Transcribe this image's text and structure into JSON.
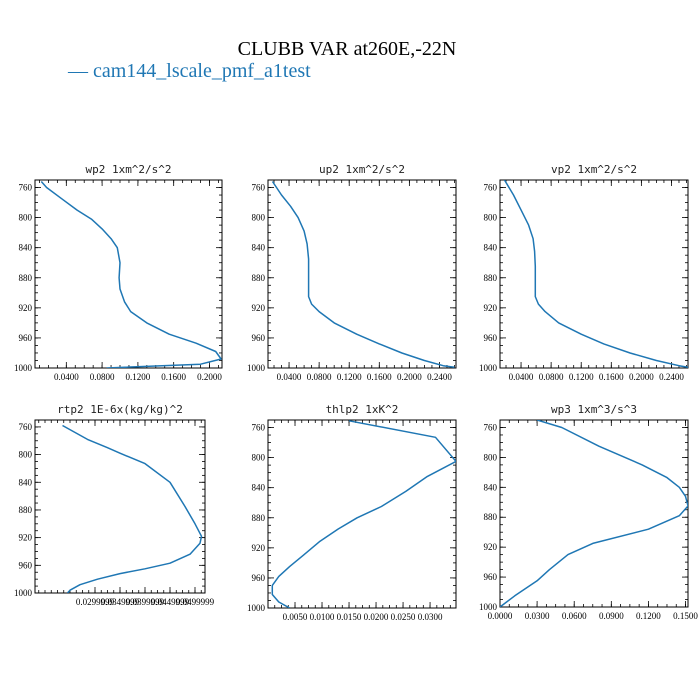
{
  "figure": {
    "title": "CLUBB VAR at260E,-22N",
    "legend": [
      {
        "label": "cam144_lscale_pmf_a1test",
        "color": "#1f77b4"
      }
    ]
  },
  "chart_data": [
    {
      "type": "line",
      "title": "wp2   1xm^2/s^2",
      "ylim": [
        750,
        1000
      ],
      "yticks": [
        760,
        800,
        840,
        880,
        920,
        960,
        1000
      ],
      "xlim": [
        0.005,
        0.214
      ],
      "xtick_labels": [
        {
          "value": 0.04,
          "label": "0.0400"
        },
        {
          "value": 0.08,
          "label": "0.0800"
        },
        {
          "value": 0.12,
          "label": "0.1200"
        },
        {
          "value": 0.16,
          "label": "0.1600"
        },
        {
          "value": 0.2,
          "label": "0.2000"
        }
      ],
      "series": [
        {
          "points": [
            [
              0.012,
              752
            ],
            [
              0.018,
              760
            ],
            [
              0.035,
              775
            ],
            [
              0.052,
              790
            ],
            [
              0.068,
              802
            ],
            [
              0.08,
              815
            ],
            [
              0.09,
              828
            ],
            [
              0.097,
              840
            ],
            [
              0.1,
              860
            ],
            [
              0.099,
              880
            ],
            [
              0.1,
              895
            ],
            [
              0.105,
              912
            ],
            [
              0.112,
              925
            ],
            [
              0.13,
              940
            ],
            [
              0.155,
              955
            ],
            [
              0.185,
              967
            ],
            [
              0.207,
              978
            ],
            [
              0.213,
              988
            ],
            [
              0.19,
              995
            ],
            [
              0.085,
              1000
            ]
          ]
        }
      ]
    },
    {
      "type": "line",
      "title": "up2   1xm^2/s^2",
      "ylim": [
        750,
        1000
      ],
      "yticks": [
        760,
        800,
        840,
        880,
        920,
        960,
        1000
      ],
      "xlim": [
        0.012,
        0.262
      ],
      "xtick_labels": [
        {
          "value": 0.04,
          "label": "0.0400"
        },
        {
          "value": 0.08,
          "label": "0.0800"
        },
        {
          "value": 0.12,
          "label": "0.1200"
        },
        {
          "value": 0.16,
          "label": "0.1600"
        },
        {
          "value": 0.2,
          "label": "0.2000"
        },
        {
          "value": 0.24,
          "label": "0.2400"
        }
      ],
      "series": [
        {
          "points": [
            [
              0.018,
              752
            ],
            [
              0.03,
              770
            ],
            [
              0.042,
              785
            ],
            [
              0.052,
              800
            ],
            [
              0.06,
              818
            ],
            [
              0.064,
              835
            ],
            [
              0.066,
              855
            ],
            [
              0.066,
              880
            ],
            [
              0.066,
              905
            ],
            [
              0.07,
              915
            ],
            [
              0.08,
              925
            ],
            [
              0.1,
              940
            ],
            [
              0.13,
              955
            ],
            [
              0.16,
              968
            ],
            [
              0.19,
              980
            ],
            [
              0.22,
              990
            ],
            [
              0.245,
              997
            ],
            [
              0.26,
              999
            ]
          ]
        }
      ]
    },
    {
      "type": "line",
      "title": "vp2   1xm^2/s^2",
      "ylim": [
        750,
        1000
      ],
      "yticks": [
        760,
        800,
        840,
        880,
        920,
        960,
        1000
      ],
      "xlim": [
        0.012,
        0.262
      ],
      "xtick_labels": [
        {
          "value": 0.04,
          "label": "0.0400"
        },
        {
          "value": 0.08,
          "label": "0.0800"
        },
        {
          "value": 0.12,
          "label": "0.1200"
        },
        {
          "value": 0.16,
          "label": "0.1600"
        },
        {
          "value": 0.2,
          "label": "0.2000"
        },
        {
          "value": 0.24,
          "label": "0.2400"
        }
      ],
      "series": [
        {
          "points": [
            [
              0.018,
              750
            ],
            [
              0.03,
              770
            ],
            [
              0.04,
              790
            ],
            [
              0.05,
              810
            ],
            [
              0.056,
              828
            ],
            [
              0.058,
              845
            ],
            [
              0.059,
              865
            ],
            [
              0.059,
              885
            ],
            [
              0.059,
              905
            ],
            [
              0.063,
              915
            ],
            [
              0.072,
              925
            ],
            [
              0.09,
              940
            ],
            [
              0.12,
              955
            ],
            [
              0.15,
              968
            ],
            [
              0.185,
              980
            ],
            [
              0.22,
              990
            ],
            [
              0.25,
              997
            ],
            [
              0.262,
              999
            ]
          ]
        }
      ]
    },
    {
      "type": "line",
      "title": "rtp2   1E-6x(kg/kg)^2",
      "ylim": [
        750,
        1000
      ],
      "yticks": [
        760,
        800,
        840,
        880,
        920,
        960,
        1000
      ],
      "xlim": [
        0.018,
        0.052
      ],
      "xtick_labels": [
        {
          "value": 0.03,
          "label": "0.0299999"
        },
        {
          "value": 0.035,
          "label": "0.0349999"
        },
        {
          "value": 0.04,
          "label": "0.0399999"
        },
        {
          "value": 0.045,
          "label": "0.0449999"
        },
        {
          "value": 0.05,
          "label": "0.0499999"
        }
      ],
      "series": [
        {
          "points": [
            [
              0.0235,
              758
            ],
            [
              0.0285,
              778
            ],
            [
              0.0325,
              790
            ],
            [
              0.035,
              798
            ],
            [
              0.04,
              813
            ],
            [
              0.045,
              840
            ],
            [
              0.048,
              875
            ],
            [
              0.05,
              900
            ],
            [
              0.0513,
              918
            ],
            [
              0.051,
              928
            ],
            [
              0.049,
              944
            ],
            [
              0.045,
              957
            ],
            [
              0.04,
              965
            ],
            [
              0.035,
              972
            ],
            [
              0.0305,
              980
            ],
            [
              0.027,
              988
            ],
            [
              0.025,
              996
            ],
            [
              0.0245,
              1000
            ]
          ]
        }
      ]
    },
    {
      "type": "line",
      "title": "thlp2   1xK^2",
      "ylim": [
        750,
        1000
      ],
      "yticks": [
        760,
        800,
        840,
        880,
        920,
        960,
        1000
      ],
      "xlim": [
        0.0,
        0.0348
      ],
      "xtick_labels": [
        {
          "value": 0.005,
          "label": "0.0050"
        },
        {
          "value": 0.01,
          "label": "0.0100"
        },
        {
          "value": 0.015,
          "label": "0.0150"
        },
        {
          "value": 0.02,
          "label": "0.0200"
        },
        {
          "value": 0.025,
          "label": "0.0250"
        },
        {
          "value": 0.03,
          "label": "0.0300"
        }
      ],
      "series": [
        {
          "points": [
            [
              0.015,
              751
            ],
            [
              0.031,
              773
            ],
            [
              0.0348,
              805
            ],
            [
              0.0295,
              825
            ],
            [
              0.0255,
              845
            ],
            [
              0.021,
              865
            ],
            [
              0.0165,
              880
            ],
            [
              0.013,
              895
            ],
            [
              0.0095,
              912
            ],
            [
              0.0065,
              930
            ],
            [
              0.004,
              945
            ],
            [
              0.002,
              958
            ],
            [
              0.0008,
              970
            ],
            [
              0.0008,
              982
            ],
            [
              0.002,
              992
            ],
            [
              0.004,
              1000
            ]
          ]
        }
      ]
    },
    {
      "type": "line",
      "title": "wp3   1xm^3/s^3",
      "ylim": [
        750,
        1000
      ],
      "yticks": [
        760,
        800,
        840,
        880,
        920,
        960,
        1000
      ],
      "xlim": [
        0.0,
        0.152
      ],
      "xtick_labels": [
        {
          "value": 0.0,
          "label": "0.0000"
        },
        {
          "value": 0.03,
          "label": "0.0300"
        },
        {
          "value": 0.06,
          "label": "0.0600"
        },
        {
          "value": 0.09,
          "label": "0.0900"
        },
        {
          "value": 0.12,
          "label": "0.1200"
        },
        {
          "value": 0.15,
          "label": "0.1500"
        }
      ],
      "series": [
        {
          "points": [
            [
              0.03,
              750
            ],
            [
              0.05,
              760
            ],
            [
              0.08,
              785
            ],
            [
              0.115,
              810
            ],
            [
              0.135,
              827
            ],
            [
              0.145,
              840
            ],
            [
              0.15,
              852
            ],
            [
              0.152,
              865
            ],
            [
              0.145,
              878
            ],
            [
              0.12,
              896
            ],
            [
              0.075,
              915
            ],
            [
              0.055,
              930
            ],
            [
              0.04,
              950
            ],
            [
              0.03,
              965
            ],
            [
              0.012,
              985
            ],
            [
              0.0,
              1000
            ]
          ]
        }
      ]
    }
  ]
}
